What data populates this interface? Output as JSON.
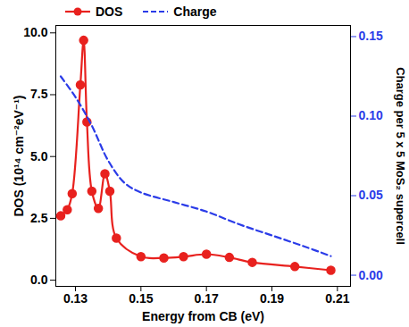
{
  "chart_data": {
    "type": "line",
    "x_label": "Energy from CB (eV)",
    "y_label": "DOS (10¹⁴ cm⁻²eV⁻¹)",
    "y2_label": "Charge per 5 x 5 MoS₂ supercell",
    "xlim": [
      0.124,
      0.214
    ],
    "xticks": [
      0.13,
      0.15,
      0.17,
      0.19,
      0.21
    ],
    "ylim": [
      -0.25,
      10.3
    ],
    "yticks": [
      {
        "value": 0,
        "label": "0.0"
      },
      2.5,
      {
        "value": 5,
        "label": "5.0"
      },
      7.5,
      {
        "value": 10,
        "label": "10.0"
      }
    ],
    "y2lim": [
      -0.007,
      0.157
    ],
    "y2ticks": [
      {
        "value": 0,
        "label": "0.00"
      },
      0.05,
      {
        "value": 0.1,
        "label": "0.10"
      },
      0.15
    ],
    "legend": "top",
    "series": [
      {
        "name": "DOS",
        "color": "#e8211e",
        "marker": "circle",
        "line_style": "solid",
        "x": [
          0.1255,
          0.1275,
          0.129,
          0.1315,
          0.1325,
          0.1335,
          0.135,
          0.137,
          0.139,
          0.1405,
          0.1425,
          0.15,
          0.157,
          0.163,
          0.17,
          0.177,
          0.184,
          0.197,
          0.208
        ],
        "values": [
          2.6,
          2.85,
          3.5,
          7.9,
          9.7,
          6.4,
          3.6,
          2.9,
          4.3,
          3.6,
          1.7,
          0.95,
          0.9,
          0.95,
          1.05,
          0.92,
          0.72,
          0.55,
          0.4
        ]
      },
      {
        "name": "Charge",
        "color": "#2b3ce8",
        "line_style": "dashed",
        "axis": "y2",
        "x": [
          0.1255,
          0.13,
          0.135,
          0.14,
          0.145,
          0.15,
          0.16,
          0.17,
          0.18,
          0.19,
          0.2,
          0.208
        ],
        "values": [
          0.125,
          0.112,
          0.094,
          0.072,
          0.058,
          0.052,
          0.046,
          0.04,
          0.032,
          0.025,
          0.018,
          0.012
        ]
      }
    ]
  }
}
